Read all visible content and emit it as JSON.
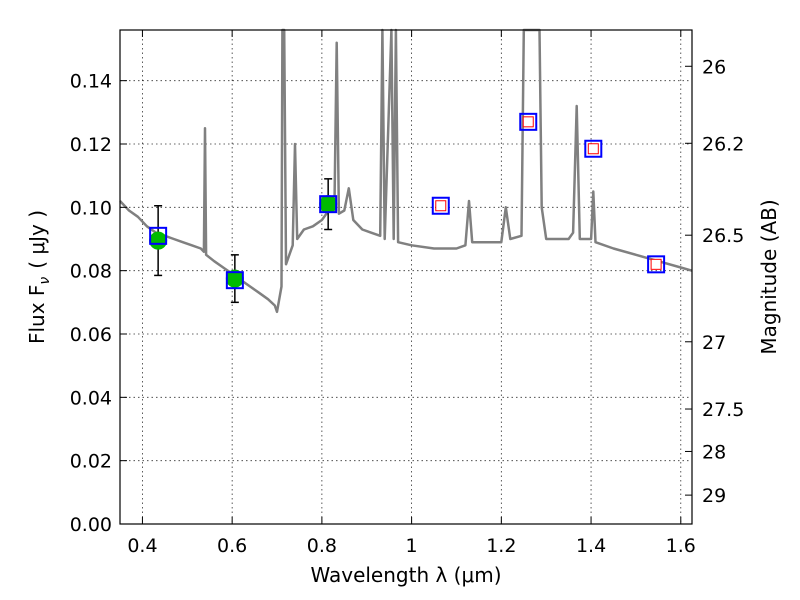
{
  "chart_data": {
    "type": "scatter",
    "xlabel": "Wavelength  λ (μm)",
    "ylabel": "Flux  F",
    "ylabel_sub": "ν",
    "ylabel_unit": "( μJy )",
    "y2label": "Magnitude (AB)",
    "xlim": [
      0.35,
      1.625
    ],
    "ylim": [
      0.0,
      0.156
    ],
    "grid": true,
    "x_ticks": [
      0.4,
      0.6,
      0.8,
      1.0,
      1.2,
      1.4,
      1.6
    ],
    "x_tick_labels": [
      "0.4",
      "0.6",
      "0.8",
      "1",
      "1.2",
      "1.4",
      "1.6"
    ],
    "y_ticks": [
      0.0,
      0.02,
      0.04,
      0.06,
      0.08,
      0.1,
      0.12,
      0.14
    ],
    "y_tick_labels": [
      "0.00",
      "0.02",
      "0.04",
      "0.06",
      "0.08",
      "0.10",
      "0.12",
      "0.14"
    ],
    "mag_ticks": [
      26,
      26.2,
      26.5,
      27,
      27.5,
      28,
      29
    ],
    "mag_tick_labels": [
      "26",
      "26.2",
      "26.5",
      "27",
      "27.5",
      "28",
      "29"
    ],
    "colors": {
      "sed": "#808080",
      "observed": "#00bb00",
      "model_box": "#0000ff",
      "upper_limit": "#ff0000",
      "errorbar": "#000000"
    },
    "series": [
      {
        "marker": "line",
        "points": [
          [
            0.35,
            0.102
          ],
          [
            0.37,
            0.099
          ],
          [
            0.39,
            0.097
          ],
          [
            0.41,
            0.094
          ],
          [
            0.43,
            0.092
          ],
          [
            0.45,
            0.091
          ],
          [
            0.47,
            0.09
          ],
          [
            0.49,
            0.089
          ],
          [
            0.51,
            0.088
          ],
          [
            0.53,
            0.087
          ],
          [
            0.537,
            0.086
          ],
          [
            0.5395,
            0.125
          ],
          [
            0.542,
            0.085
          ],
          [
            0.56,
            0.083
          ],
          [
            0.58,
            0.081
          ],
          [
            0.6,
            0.079
          ],
          [
            0.62,
            0.077
          ],
          [
            0.64,
            0.075
          ],
          [
            0.66,
            0.073
          ],
          [
            0.68,
            0.071
          ],
          [
            0.695,
            0.069
          ],
          [
            0.7,
            0.067
          ],
          [
            0.71,
            0.075
          ],
          [
            0.712,
            0.156
          ],
          [
            0.716,
            0.156
          ],
          [
            0.72,
            0.082
          ],
          [
            0.735,
            0.088
          ],
          [
            0.74,
            0.12
          ],
          [
            0.745,
            0.09
          ],
          [
            0.76,
            0.093
          ],
          [
            0.78,
            0.094
          ],
          [
            0.8,
            0.096
          ],
          [
            0.81,
            0.098
          ],
          [
            0.82,
            0.1
          ],
          [
            0.828,
            0.099
          ],
          [
            0.833,
            0.152
          ],
          [
            0.838,
            0.098
          ],
          [
            0.85,
            0.099
          ],
          [
            0.86,
            0.106
          ],
          [
            0.87,
            0.096
          ],
          [
            0.89,
            0.093
          ],
          [
            0.91,
            0.092
          ],
          [
            0.93,
            0.091
          ],
          [
            0.935,
            0.156
          ],
          [
            0.94,
            0.09
          ],
          [
            0.955,
            0.156
          ],
          [
            0.96,
            0.09
          ],
          [
            0.965,
            0.156
          ],
          [
            0.97,
            0.089
          ],
          [
            1.0,
            0.088
          ],
          [
            1.05,
            0.087
          ],
          [
            1.1,
            0.087
          ],
          [
            1.12,
            0.088
          ],
          [
            1.128,
            0.102
          ],
          [
            1.135,
            0.089
          ],
          [
            1.2,
            0.089
          ],
          [
            1.21,
            0.1
          ],
          [
            1.22,
            0.09
          ],
          [
            1.245,
            0.091
          ],
          [
            1.25,
            0.156
          ],
          [
            1.27,
            0.156
          ],
          [
            1.285,
            0.156
          ],
          [
            1.29,
            0.1
          ],
          [
            1.3,
            0.09
          ],
          [
            1.35,
            0.09
          ],
          [
            1.36,
            0.092
          ],
          [
            1.368,
            0.132
          ],
          [
            1.375,
            0.09
          ],
          [
            1.4,
            0.09
          ],
          [
            1.405,
            0.105
          ],
          [
            1.41,
            0.089
          ],
          [
            1.45,
            0.087
          ],
          [
            1.5,
            0.085
          ],
          [
            1.55,
            0.083
          ],
          [
            1.6,
            0.081
          ],
          [
            1.625,
            0.08
          ]
        ]
      },
      {
        "marker": "circle",
        "points": [
          {
            "x": 0.435,
            "y": 0.0895,
            "err": 0.011
          },
          {
            "x": 0.606,
            "y": 0.0775,
            "err": 0.0075
          },
          {
            "x": 0.814,
            "y": 0.101,
            "err": 0.008
          }
        ]
      },
      {
        "marker": "square",
        "points": [
          {
            "x": 0.435,
            "y": 0.091
          },
          {
            "x": 0.606,
            "y": 0.077
          },
          {
            "x": 0.814,
            "y": 0.101
          },
          {
            "x": 1.065,
            "y": 0.1005
          },
          {
            "x": 1.26,
            "y": 0.127
          },
          {
            "x": 1.405,
            "y": 0.1185
          },
          {
            "x": 1.545,
            "y": 0.082
          }
        ]
      },
      {
        "marker": "open-square",
        "points": [
          {
            "x": 1.065,
            "y": 0.1005
          },
          {
            "x": 1.26,
            "y": 0.127
          },
          {
            "x": 1.405,
            "y": 0.1185
          },
          {
            "x": 1.545,
            "y": 0.082
          }
        ]
      }
    ]
  }
}
